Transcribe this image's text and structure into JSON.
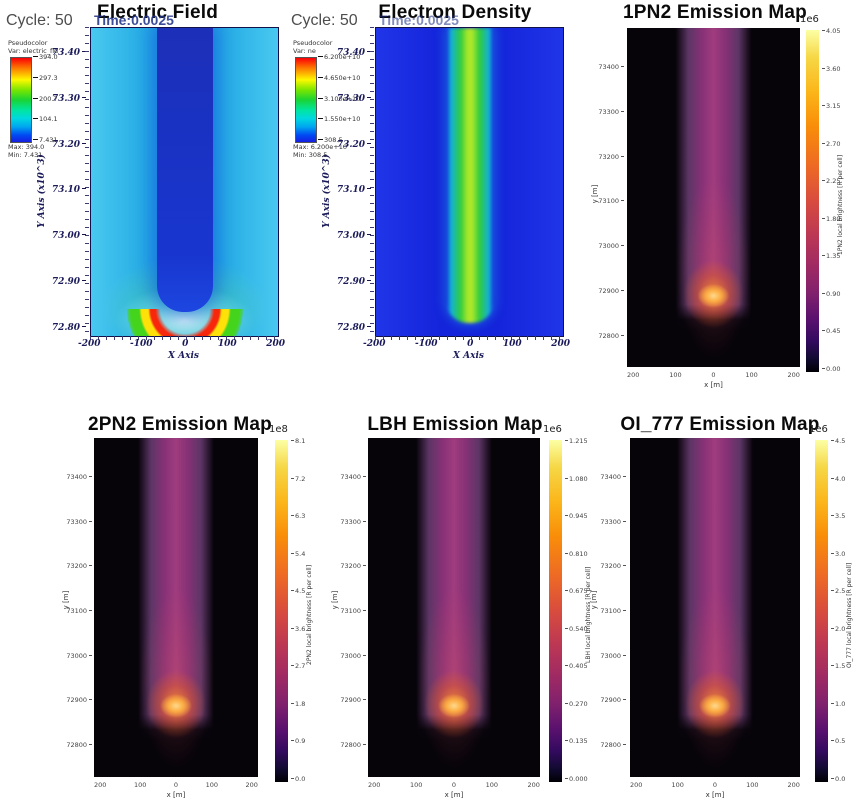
{
  "figure": {
    "ef": {
      "title": "Electric Field",
      "cycle": "Cycle: 50",
      "time": "Time:0.0025",
      "legend_type": "Pseudocolor",
      "legend_var": "Var: electric_fld",
      "legend_ticks": [
        "394.0",
        "297.3",
        "200.7",
        "104.1",
        "7.431"
      ],
      "legend_max": "Max: 394.0",
      "legend_min": "Min: 7.431",
      "x_label": "X Axis",
      "y_label": "Y Axis (x10^3)",
      "y_ticks": [
        "73.40",
        "73.30",
        "73.20",
        "73.10",
        "73.00",
        "72.90",
        "72.80"
      ],
      "x_ticks": [
        "-200",
        "-100",
        "0",
        "100",
        "200"
      ]
    },
    "ed": {
      "title": "Electron Density",
      "cycle": "Cycle: 50",
      "time": "Time:0.0025",
      "legend_type": "Pseudocolor",
      "legend_var": "Var: ne",
      "legend_ticks": [
        "6.200e+10",
        "4.650e+10",
        "3.100e+10",
        "1.550e+10",
        "308.5"
      ],
      "legend_max": "Max: 6.200e+10",
      "legend_min": "Min: 308.5",
      "x_label": "X Axis",
      "y_label": "Y Axis (x10^3)",
      "y_ticks": [
        "73.40",
        "73.30",
        "73.20",
        "73.10",
        "73.00",
        "72.90",
        "72.80"
      ],
      "x_ticks": [
        "-200",
        "-100",
        "0",
        "100",
        "200"
      ]
    },
    "em1": {
      "title": "1PN2 Emission Map",
      "exponent": "1e6",
      "cbar_ticks": [
        "4.05",
        "3.60",
        "3.15",
        "2.70",
        "2.25",
        "1.80",
        "1.35",
        "0.90",
        "0.45",
        "0.00"
      ],
      "cbar_label": "1PN2 local brightness [R per cell]",
      "x_label": "x [m]",
      "y_label": "y [m]",
      "y_ticks": [
        "73400",
        "73300",
        "73200",
        "73100",
        "73000",
        "72900",
        "72800"
      ],
      "x_ticks": [
        "200",
        "100",
        "0",
        "100",
        "200"
      ]
    },
    "em2": {
      "title": "2PN2 Emission Map",
      "exponent": "1e8",
      "cbar_ticks": [
        "8.1",
        "7.2",
        "6.3",
        "5.4",
        "4.5",
        "3.6",
        "2.7",
        "1.8",
        "0.9",
        "0.0"
      ],
      "cbar_label": "2PN2 local brightness [R per cell]",
      "x_label": "x [m]",
      "y_label": "y [m]",
      "y_ticks": [
        "73400",
        "73300",
        "73200",
        "73100",
        "73000",
        "72900",
        "72800"
      ],
      "x_ticks": [
        "200",
        "100",
        "0",
        "100",
        "200"
      ]
    },
    "em3": {
      "title": "LBH Emission Map",
      "exponent": "1e6",
      "cbar_ticks": [
        "1.215",
        "1.080",
        "0.945",
        "0.810",
        "0.675",
        "0.540",
        "0.405",
        "0.270",
        "0.135",
        "0.000"
      ],
      "cbar_label": "LBH local brightness [R per cell]",
      "x_label": "x [m]",
      "y_label": "y [m]",
      "y_ticks": [
        "73400",
        "73300",
        "73200",
        "73100",
        "73000",
        "72900",
        "72800"
      ],
      "x_ticks": [
        "200",
        "100",
        "0",
        "100",
        "200"
      ]
    },
    "em4": {
      "title": "OI_777 Emission Map",
      "exponent": "1e6",
      "cbar_ticks": [
        "4.5",
        "4.0",
        "3.5",
        "3.0",
        "2.5",
        "2.0",
        "1.5",
        "1.0",
        "0.5",
        "0.0"
      ],
      "cbar_label": "OI_777 local brightness [R per cell]",
      "x_label": "x [m]",
      "y_label": "y [m]",
      "y_ticks": [
        "73400",
        "73300",
        "73200",
        "73100",
        "73000",
        "72900",
        "72800"
      ],
      "x_ticks": [
        "200",
        "100",
        "0",
        "100",
        "200"
      ]
    }
  },
  "chart_data": [
    {
      "type": "heatmap",
      "title": "Electric Field",
      "cycle": 50,
      "time": 0.0025,
      "x_label": "X Axis",
      "y_label": "Y Axis (x10^3)",
      "x_range": [
        -200,
        200
      ],
      "y_range": [
        72.78,
        73.46
      ],
      "value_min": 7.431,
      "value_max": 394.0,
      "colormap": "rainbow",
      "legend_ticks": [
        394.0,
        297.3,
        200.7,
        104.1,
        7.431
      ],
      "features": "dark-blue streamer channel at x=0 from top to y~72.85k; U-shaped head ringed green/yellow with red field maximum at tip near y~72.84k on cyan background"
    },
    {
      "type": "heatmap",
      "title": "Electron Density",
      "cycle": 50,
      "time": 0.0025,
      "x_label": "X Axis",
      "y_label": "Y Axis (x10^3)",
      "x_range": [
        -200,
        200
      ],
      "y_range": [
        72.78,
        73.46
      ],
      "value_min": 308.5,
      "value_max": 62000000000.0,
      "colormap": "rainbow",
      "legend_ticks": [
        62000000000.0,
        46500000000.0,
        31000000000.0,
        15500000000.0,
        308.5
      ],
      "features": "green/yellow-green high-density column at x=0 with rounded end near y~72.82k on uniform blue background"
    },
    {
      "type": "heatmap",
      "title": "1PN2 Emission Map",
      "x_label": "x [m]",
      "y_label": "y [m]",
      "x_range": [
        -200,
        200
      ],
      "y_range": [
        72750,
        73450
      ],
      "value_min": 0.0,
      "value_max": 4050000.0,
      "colormap": "inferno",
      "colorbar_exponent": "1e6",
      "features": "purple emission column at x=0 with bright orange head near y~72900 on black background"
    },
    {
      "type": "heatmap",
      "title": "2PN2 Emission Map",
      "x_label": "x [m]",
      "y_label": "y [m]",
      "x_range": [
        -200,
        200
      ],
      "y_range": [
        72750,
        73450
      ],
      "value_min": 0.0,
      "value_max": 810000000.0,
      "colormap": "inferno",
      "colorbar_exponent": "1e8",
      "features": "purple emission column at x=0 with bright orange head near y~72900 on black background"
    },
    {
      "type": "heatmap",
      "title": "LBH Emission Map",
      "x_label": "x [m]",
      "y_label": "y [m]",
      "x_range": [
        -200,
        200
      ],
      "y_range": [
        72750,
        73450
      ],
      "value_min": 0.0,
      "value_max": 1215000.0,
      "colormap": "inferno",
      "colorbar_exponent": "1e6",
      "features": "purple emission column at x=0 with bright orange head near y~72900 on black background"
    },
    {
      "type": "heatmap",
      "title": "OI_777 Emission Map",
      "x_label": "x [m]",
      "y_label": "y [m]",
      "x_range": [
        -200,
        200
      ],
      "y_range": [
        72750,
        73450
      ],
      "value_min": 0.0,
      "value_max": 4500000.0,
      "colormap": "inferno",
      "colorbar_exponent": "1e6",
      "features": "purple emission column at x=0 with bright orange head near y~72900 on black background"
    }
  ]
}
